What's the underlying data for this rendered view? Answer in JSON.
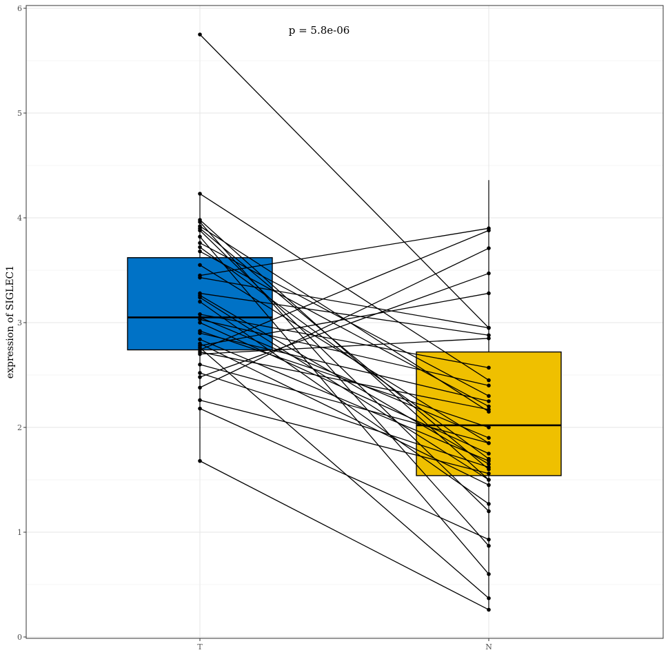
{
  "chart_data": {
    "type": "box",
    "categories": [
      "T",
      "N"
    ],
    "ylabel": "expression of SIGLEC1",
    "xlabel": "",
    "ylim": [
      0,
      6
    ],
    "yticks": [
      "0",
      "1",
      "2",
      "3",
      "4",
      "5",
      "6"
    ],
    "annotation": "p = 5.8e-06",
    "grid": true,
    "colors": {
      "T": "#0072C6",
      "N": "#EFC000"
    },
    "boxes": [
      {
        "category": "T",
        "q1": 2.74,
        "median": 3.05,
        "q3": 3.62,
        "whisker_low": 1.68,
        "whisker_high": 4.23
      },
      {
        "category": "N",
        "q1": 1.54,
        "median": 2.02,
        "q3": 2.72,
        "whisker_low": 0.26,
        "whisker_high": 4.36
      }
    ],
    "pairs": [
      [
        5.75,
        2.95
      ],
      [
        4.23,
        2.45
      ],
      [
        3.98,
        1.5
      ],
      [
        3.96,
        0.87
      ],
      [
        3.92,
        2.15
      ],
      [
        3.9,
        1.6
      ],
      [
        3.88,
        1.2
      ],
      [
        3.82,
        0.6
      ],
      [
        3.76,
        2.3
      ],
      [
        3.72,
        1.7
      ],
      [
        3.68,
        2.2
      ],
      [
        3.55,
        1.85
      ],
      [
        3.45,
        3.9
      ],
      [
        3.43,
        2.95
      ],
      [
        3.28,
        2.88
      ],
      [
        3.26,
        1.65
      ],
      [
        3.24,
        1.5
      ],
      [
        3.2,
        1.27
      ],
      [
        3.08,
        2.57
      ],
      [
        3.05,
        1.9
      ],
      [
        3.03,
        2.4
      ],
      [
        3.0,
        1.75
      ],
      [
        2.92,
        2.0
      ],
      [
        2.9,
        2.25
      ],
      [
        2.84,
        1.68
      ],
      [
        2.8,
        1.45
      ],
      [
        2.78,
        3.28
      ],
      [
        2.76,
        0.37
      ],
      [
        2.74,
        3.88
      ],
      [
        2.72,
        2.17
      ],
      [
        2.7,
        2.85
      ],
      [
        2.6,
        1.85
      ],
      [
        2.52,
        1.62
      ],
      [
        2.48,
        3.47
      ],
      [
        2.38,
        3.71
      ],
      [
        2.26,
        1.56
      ],
      [
        2.18,
        0.93
      ],
      [
        1.68,
        0.26
      ]
    ]
  }
}
